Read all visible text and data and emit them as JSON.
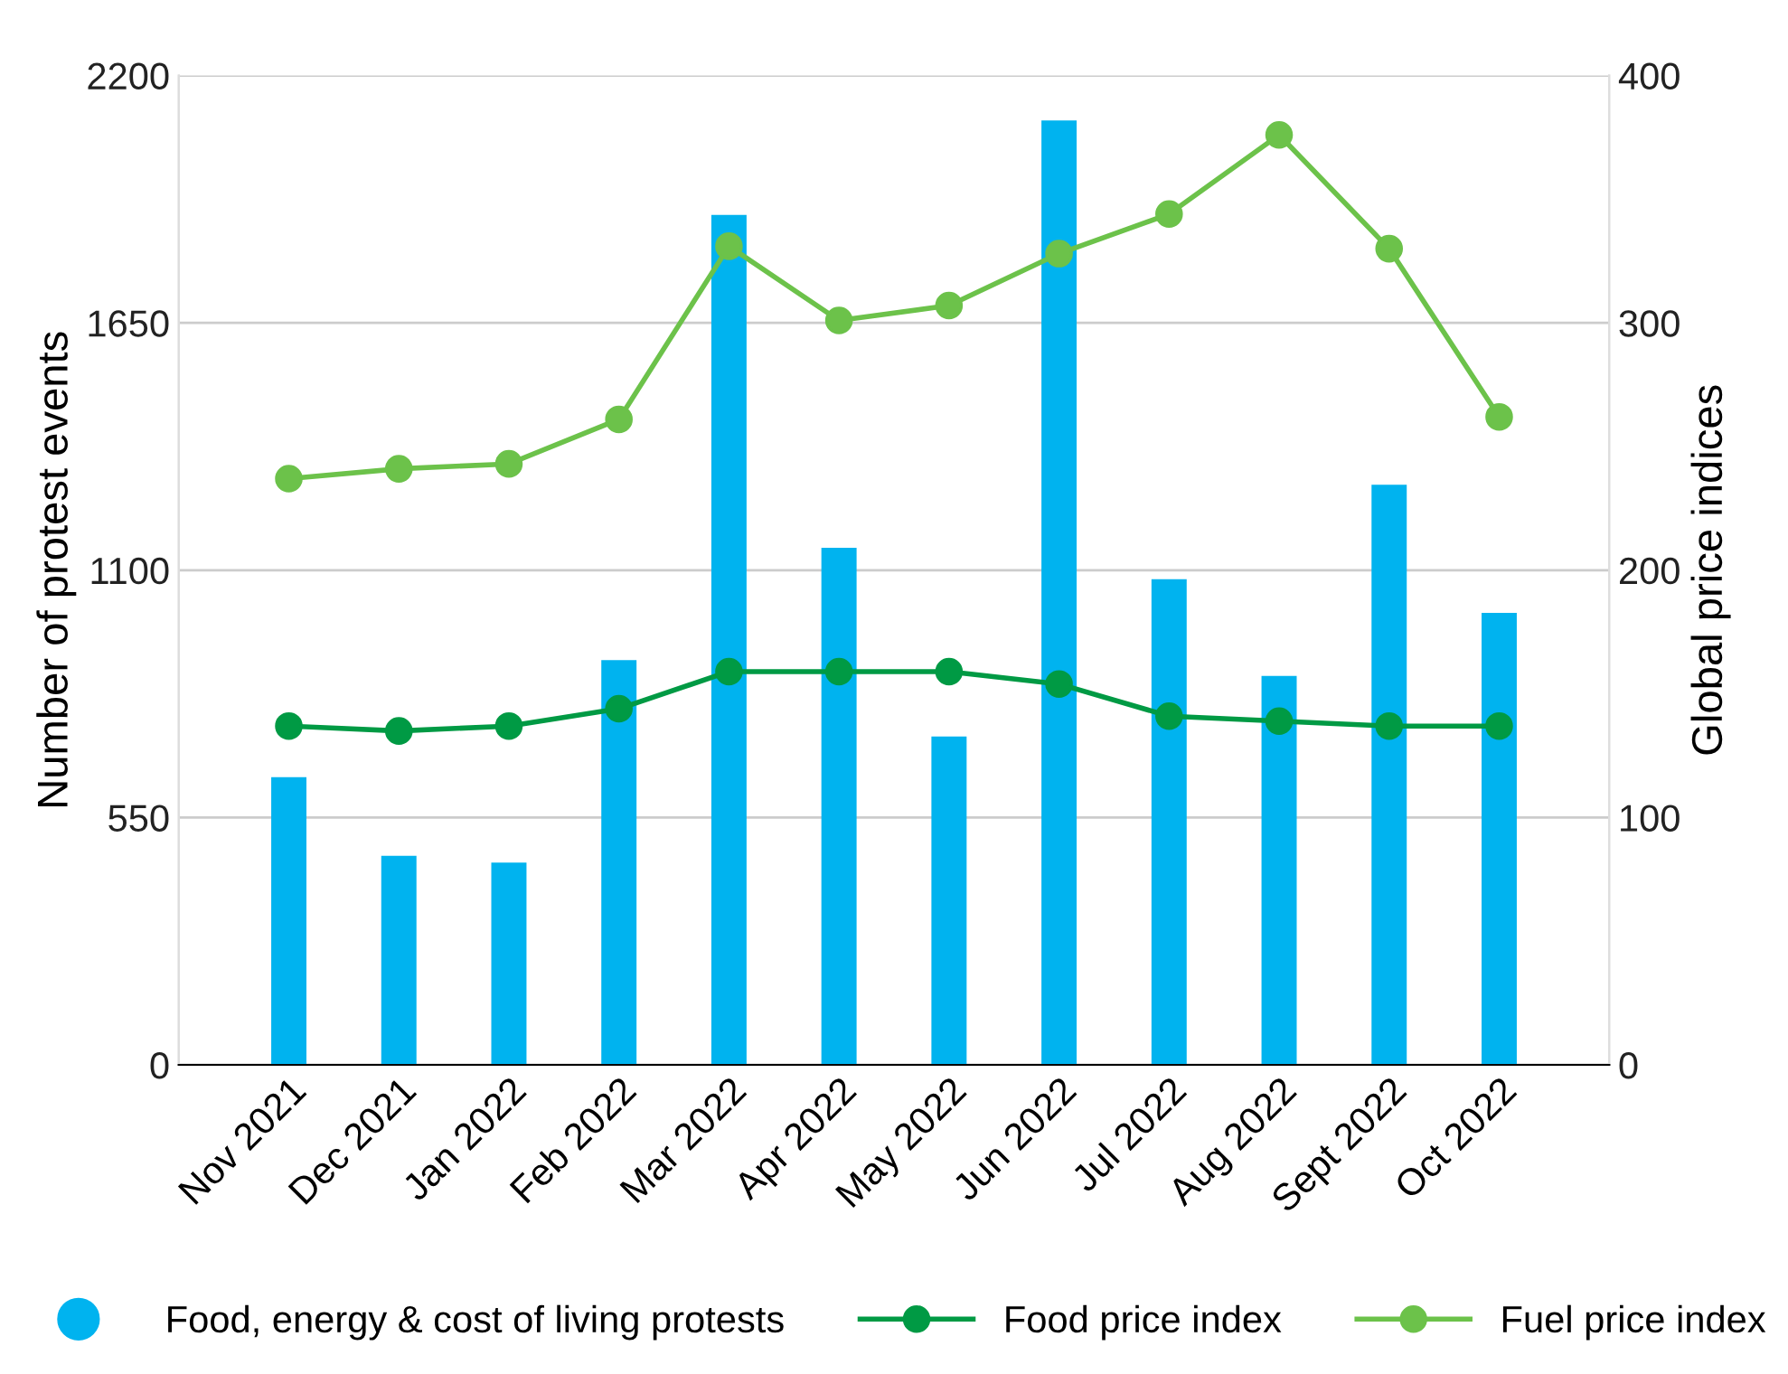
{
  "chart_data": {
    "type": "bar",
    "categories": [
      "Nov 2021",
      "Dec 2021",
      "Jan 2022",
      "Feb 2022",
      "Mar 2022",
      "Apr 2022",
      "May 2022",
      "Jun 2022",
      "Jul 2022",
      "Aug 2022",
      "Sept 2022",
      "Oct 2022"
    ],
    "series": [
      {
        "name": "Food, energy & cost of living protests",
        "color": "#00b3ef",
        "values": [
          640,
          465,
          450,
          900,
          1890,
          1150,
          730,
          2100,
          1080,
          865,
          1290,
          1005
        ]
      },
      {
        "name": "Food price index",
        "type": "line",
        "axis": "y2",
        "color": "#009a44",
        "values": [
          137,
          135,
          137,
          144,
          159,
          159,
          159,
          154,
          141,
          139,
          137,
          137
        ]
      },
      {
        "name": "Fuel price index",
        "type": "line",
        "axis": "y2",
        "color": "#6cc24a",
        "values": [
          237,
          241,
          243,
          261,
          331,
          301,
          307,
          328,
          344,
          376,
          330,
          262
        ]
      }
    ],
    "ylabel": "Number of protest events",
    "y2label": "Global price indices",
    "ylim": [
      0,
      2200
    ],
    "yticks": [
      0,
      550,
      1100,
      1650,
      2200
    ],
    "y2lim": [
      0,
      400
    ],
    "y2ticks": [
      0,
      100,
      200,
      300,
      400
    ],
    "grid": "y",
    "legend": "bottom",
    "marker": "circle",
    "line_style": "solid"
  }
}
